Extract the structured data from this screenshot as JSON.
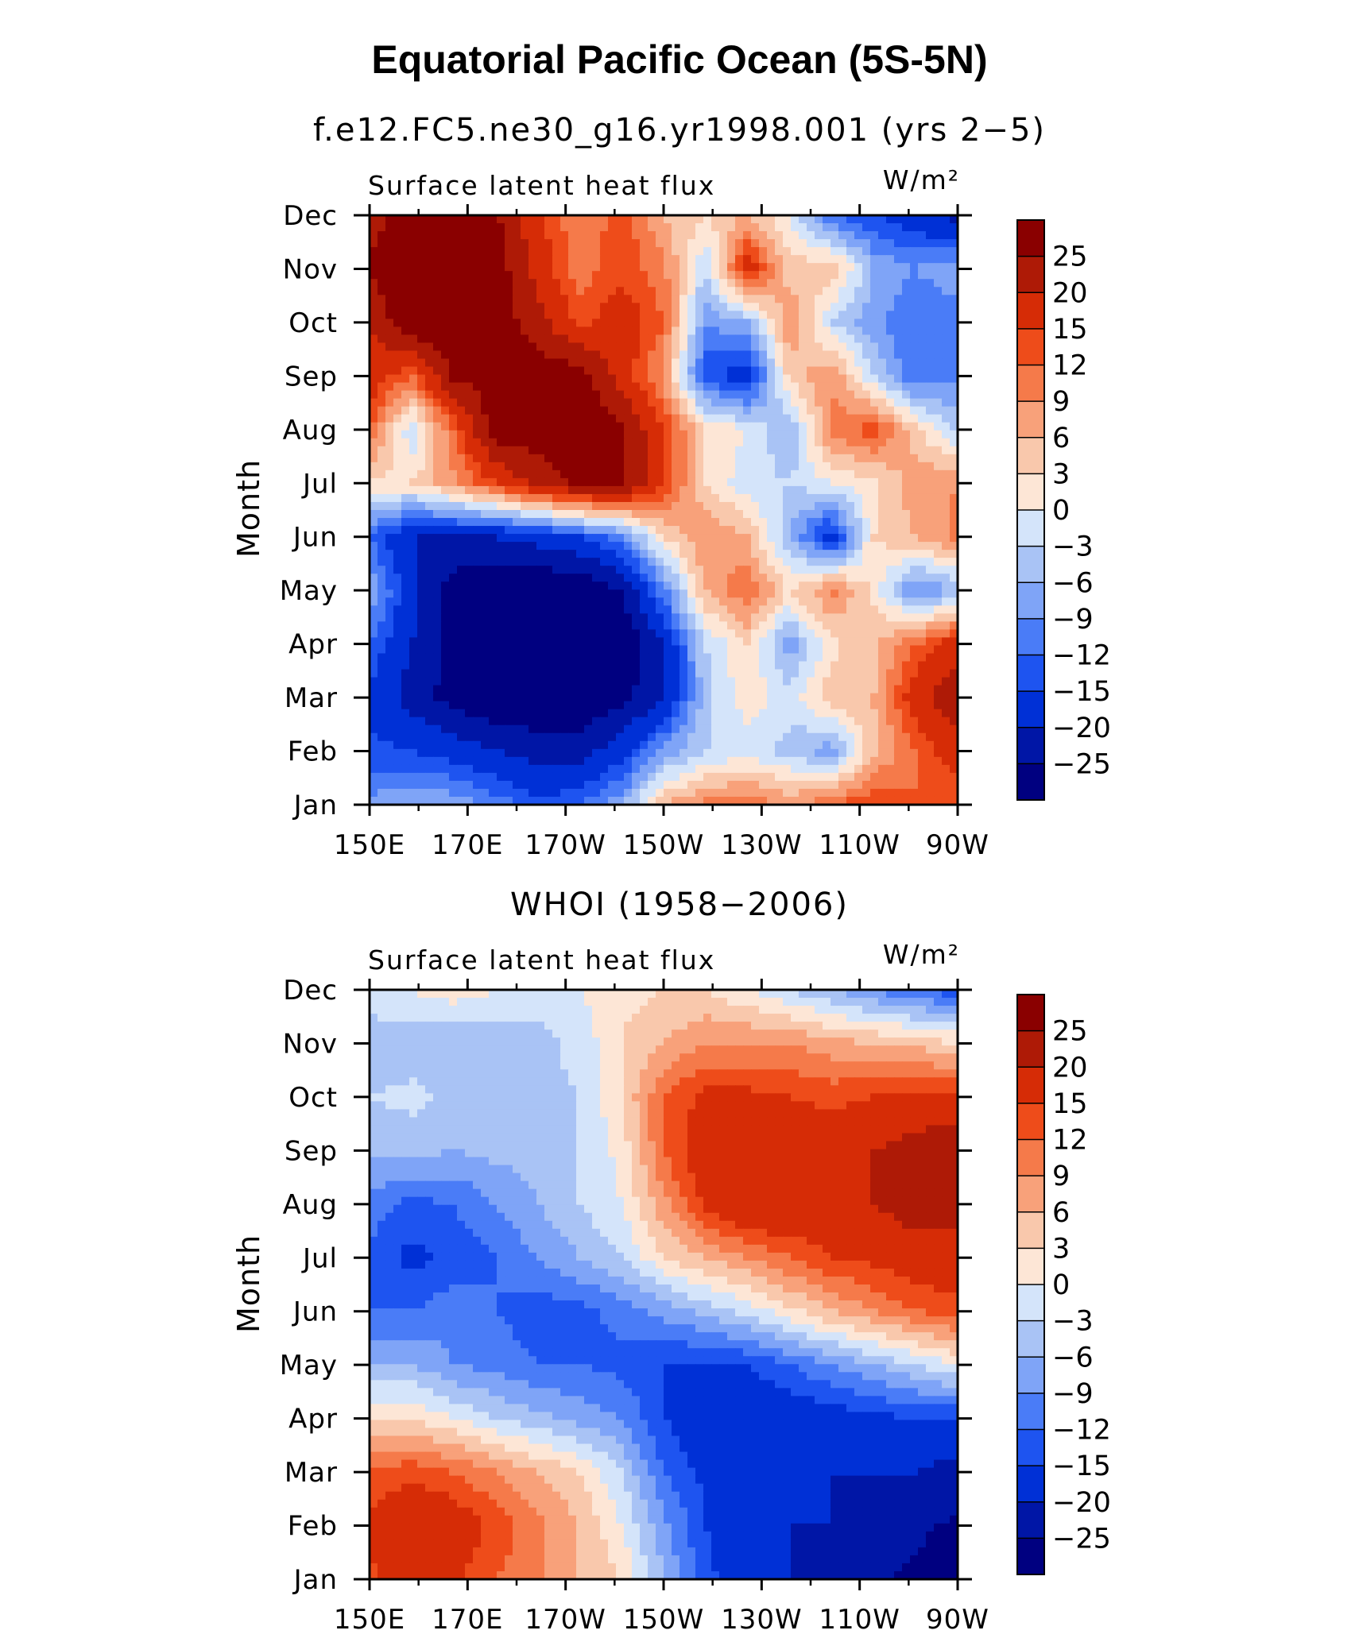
{
  "figure": {
    "title": "Equatorial Pacific Ocean (5S-5N)"
  },
  "chart_data": [
    {
      "type": "heatmap",
      "subtitle": "f.e12.FC5.ne30_g16.yr1998.001 (yrs 2−5)",
      "left_label": "Surface latent heat flux",
      "units": "W/m²",
      "ylabel": "Month",
      "xlabel": "",
      "x_labels": [
        "150E",
        "170E",
        "170W",
        "150W",
        "130W",
        "110W",
        "90W"
      ],
      "x_values": [
        150,
        170,
        190,
        210,
        230,
        250,
        270
      ],
      "xlim": [
        150,
        270
      ],
      "y_labels": [
        "Jan",
        "Feb",
        "Mar",
        "Apr",
        "May",
        "Jun",
        "Jul",
        "Aug",
        "Sep",
        "Oct",
        "Nov",
        "Dec"
      ],
      "levels": [
        -25,
        -20,
        -15,
        -12,
        -9,
        -6,
        -3,
        0,
        3,
        6,
        9,
        12,
        15,
        20,
        25
      ],
      "values": [
        [
          -8,
          -6,
          -7,
          -10,
          -14,
          -12,
          -7,
          6,
          10,
          12,
          8,
          12,
          15,
          12,
          12
        ],
        [
          -14,
          -15,
          -17,
          -20,
          -22,
          -22,
          -17,
          -8,
          -3,
          -2,
          -4,
          -8,
          5,
          12,
          18
        ],
        [
          -16,
          -22,
          -27,
          -30,
          -30,
          -30,
          -27,
          -20,
          -4,
          2,
          -2,
          5,
          6,
          18,
          24
        ],
        [
          -12,
          -20,
          -28,
          -30,
          -30,
          -30,
          -30,
          -20,
          -3,
          3,
          -8,
          2,
          5,
          12,
          18
        ],
        [
          -6,
          -18,
          -28,
          -30,
          -30,
          -30,
          -25,
          -10,
          6,
          12,
          3,
          10,
          2,
          -10,
          -6
        ],
        [
          -12,
          -20,
          -20,
          -20,
          -18,
          -15,
          -10,
          3,
          9,
          6,
          -6,
          -18,
          3,
          6,
          10
        ],
        [
          2,
          3,
          8,
          15,
          22,
          26,
          26,
          15,
          3,
          -2,
          -3,
          0,
          2,
          8,
          9
        ],
        [
          12,
          -3,
          12,
          28,
          28,
          28,
          26,
          15,
          3,
          0,
          -6,
          10,
          14,
          4,
          -4
        ],
        [
          18,
          12,
          26,
          28,
          28,
          28,
          18,
          8,
          -14,
          -18,
          4,
          9,
          -3,
          -12,
          -10
        ],
        [
          20,
          30,
          30,
          28,
          22,
          14,
          18,
          12,
          -9,
          -6,
          9,
          -3,
          -8,
          -12,
          -12
        ],
        [
          26,
          30,
          30,
          28,
          18,
          10,
          14,
          10,
          -3,
          18,
          4,
          6,
          -6,
          -9,
          -6
        ],
        [
          22,
          30,
          28,
          26,
          16,
          9,
          14,
          6,
          3,
          6,
          0,
          -12,
          -15,
          -18,
          -22
        ]
      ]
    },
    {
      "type": "heatmap",
      "subtitle": "WHOI (1958−2006)",
      "left_label": "Surface latent heat flux",
      "units": "W/m²",
      "ylabel": "Month",
      "xlabel": "",
      "x_labels": [
        "150E",
        "170E",
        "170W",
        "150W",
        "130W",
        "110W",
        "90W"
      ],
      "x_values": [
        150,
        170,
        190,
        210,
        230,
        250,
        270
      ],
      "xlim": [
        150,
        270
      ],
      "y_labels": [
        "Jan",
        "Feb",
        "Mar",
        "Apr",
        "May",
        "Jun",
        "Jul",
        "Aug",
        "Sep",
        "Oct",
        "Nov",
        "Dec"
      ],
      "levels": [
        -25,
        -20,
        -15,
        -12,
        -9,
        -6,
        -3,
        0,
        3,
        6,
        9,
        12,
        15,
        20,
        25
      ],
      "values": [
        [
          14,
          18,
          16,
          12,
          10,
          6,
          3,
          -6,
          -14,
          -18,
          -20,
          -22,
          -24,
          -26,
          -28
        ],
        [
          16,
          20,
          18,
          14,
          10,
          6,
          0,
          -8,
          -15,
          -18,
          -20,
          -20,
          -22,
          -24,
          -26
        ],
        [
          12,
          14,
          12,
          9,
          6,
          3,
          -3,
          -12,
          -16,
          -18,
          -18,
          -20,
          -20,
          -20,
          -22
        ],
        [
          3,
          3,
          0,
          -3,
          -5,
          -7,
          -9,
          -15,
          -18,
          -18,
          -18,
          -17,
          -16,
          -15,
          -15
        ],
        [
          -6,
          -6,
          -9,
          -10,
          -12,
          -12,
          -13,
          -15,
          -16,
          -15,
          -12,
          -9,
          -6,
          -3,
          0
        ],
        [
          -12,
          -12,
          -10,
          -12,
          -14,
          -13,
          -11,
          -8,
          -5,
          -2,
          2,
          6,
          9,
          12,
          14
        ],
        [
          -13,
          -16,
          -14,
          -12,
          -9,
          -6,
          -3,
          3,
          6,
          9,
          12,
          15,
          16,
          18,
          18
        ],
        [
          -10,
          -13,
          -12,
          -9,
          -6,
          -3,
          0,
          8,
          16,
          20,
          20,
          18,
          20,
          22,
          22
        ],
        [
          -5,
          -5,
          -6,
          -5,
          -5,
          -3,
          1,
          12,
          18,
          20,
          18,
          18,
          20,
          22,
          24
        ],
        [
          -3,
          -2,
          -4,
          -5,
          -4,
          -3,
          3,
          12,
          16,
          16,
          15,
          14,
          15,
          16,
          16
        ],
        [
          -6,
          -5,
          -6,
          -5,
          -4,
          -2,
          3,
          6,
          9,
          9,
          9,
          7,
          6,
          5,
          3
        ],
        [
          0,
          0,
          2,
          0,
          -2,
          0,
          2,
          3,
          3,
          0,
          -3,
          -6,
          -9,
          -12,
          -14
        ]
      ]
    }
  ],
  "colorbar": {
    "colors": [
      "#000080",
      "#0016A6",
      "#0030D6",
      "#1E54F0",
      "#4A7CF7",
      "#7FA4F7",
      "#A9C3F5",
      "#D4E4FA",
      "#FDE6D6",
      "#F9C8AC",
      "#F8A17A",
      "#F57A4A",
      "#EE4C1A",
      "#D62C06",
      "#AE1A06",
      "#8A0000"
    ],
    "labels": [
      "−25",
      "−20",
      "−15",
      "−12",
      "−9",
      "−6",
      "−3",
      "0",
      "3",
      "6",
      "9",
      "12",
      "15",
      "20",
      "25"
    ]
  }
}
